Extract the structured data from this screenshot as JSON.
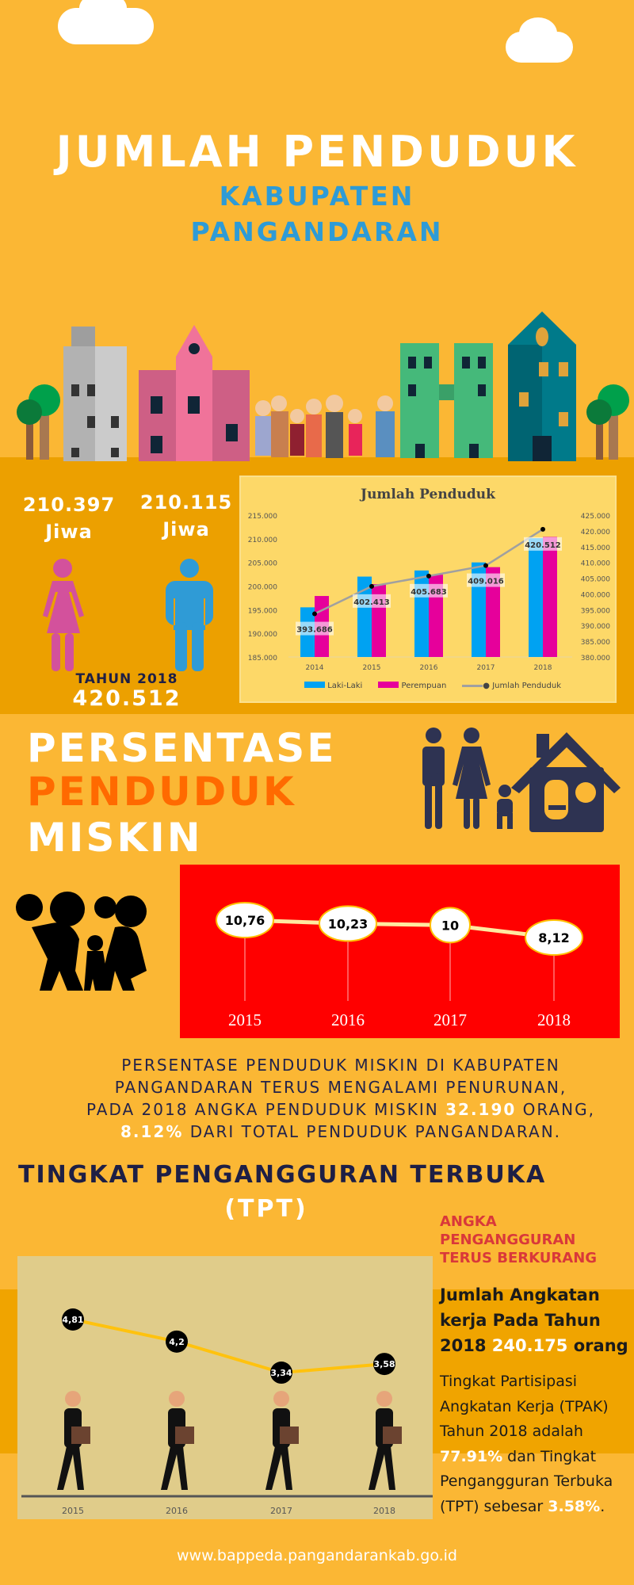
{
  "header": {
    "title": "JUMLAH PENDUDUK",
    "subtitle_1": "KABUPATEN",
    "subtitle_2": "PANGANDARAN"
  },
  "population": {
    "female": {
      "value": "210.397",
      "unit": "Jiwa",
      "color": "#d3519c"
    },
    "male": {
      "value": "210.115",
      "unit": "Jiwa",
      "color": "#2f9bd6"
    },
    "year_label": "TAHUN 2018",
    "total": "420.512"
  },
  "chart_data": [
    {
      "type": "bar",
      "title": "Jumlah Penduduk",
      "categories": [
        "2014",
        "2015",
        "2016",
        "2017",
        "2018"
      ],
      "series": [
        {
          "name": "Laki-Laki",
          "color": "#00a2f2",
          "values": [
            195500,
            202000,
            203300,
            205000,
            210115
          ]
        },
        {
          "name": "Perempuan",
          "color": "#e6009b",
          "values": [
            197900,
            200400,
            202400,
            204000,
            210397
          ]
        },
        {
          "name": "Jumlah Penduduk",
          "type": "line",
          "axis": "right",
          "color": "#a0a0a0",
          "values": [
            393686,
            402413,
            405683,
            409016,
            420512
          ],
          "labels": [
            "393.686",
            "402.413",
            "405.683",
            "409.016",
            "420.512"
          ]
        }
      ],
      "ylim": [
        185000,
        215000
      ],
      "yticks": [
        "185.000",
        "190.000",
        "195.000",
        "200.000",
        "205.000",
        "210.000",
        "215.000"
      ],
      "y2lim": [
        380000,
        425000
      ],
      "y2ticks": [
        "380.000",
        "385.000",
        "390.000",
        "395.000",
        "400.000",
        "405.000",
        "410.000",
        "415.000",
        "420.000",
        "425.000"
      ],
      "legend": "bottom"
    },
    {
      "type": "line",
      "categories": [
        "2015",
        "2016",
        "2017",
        "2018"
      ],
      "values": [
        10.76,
        10.23,
        10,
        8.12
      ],
      "labels": [
        "10,76",
        "10,23",
        "10",
        "8,12"
      ],
      "background": "#ff0000"
    },
    {
      "type": "line",
      "categories": [
        "2015",
        "2016",
        "2017",
        "2018"
      ],
      "values": [
        4.81,
        4.2,
        3.34,
        3.58
      ],
      "labels": [
        "4,81",
        "4,2",
        "3,34",
        "3,58"
      ],
      "line_color": "#ffc20e"
    }
  ],
  "poverty": {
    "title_1": "PERSENTASE",
    "title_2": "PENDUDUK",
    "title_3": "MISKIN",
    "text_1": "PERSENTASE PENDUDUK MISKIN DI KABUPATEN",
    "text_2": "PANGANDARAN TERUS MENGALAMI PENURUNAN,",
    "text_3a": "PADA 2018 ANGKA PENDUDUK MISKIN ",
    "text_3b": "32.190",
    "text_3c": " ORANG,",
    "text_4a": "8.12%",
    "text_4b": " DARI TOTAL PENDUDUK PANGANDARAN."
  },
  "tpt": {
    "title": "TINGKAT PENGANGGURAN TERBUKA",
    "subtitle": "(TPT)",
    "note_1": "ANGKA",
    "note_2": "PENGANGGURAN",
    "note_3": "TERUS BERKURANG",
    "labor_a": "Jumlah Angkatan kerja Pada Tahun 2018 ",
    "labor_b": "240.175",
    "labor_c": " orang",
    "desc_a": "Tingkat Partisipasi Angkatan Kerja (TPAK) Tahun 2018 adalah ",
    "desc_b": "77.91%",
    "desc_c": " dan Tingkat Pengangguran Terbuka (TPT) sebesar ",
    "desc_d": "3.58%",
    "desc_e": "."
  },
  "footer": {
    "url": "www.bappeda.pangandarankab.go.id"
  }
}
